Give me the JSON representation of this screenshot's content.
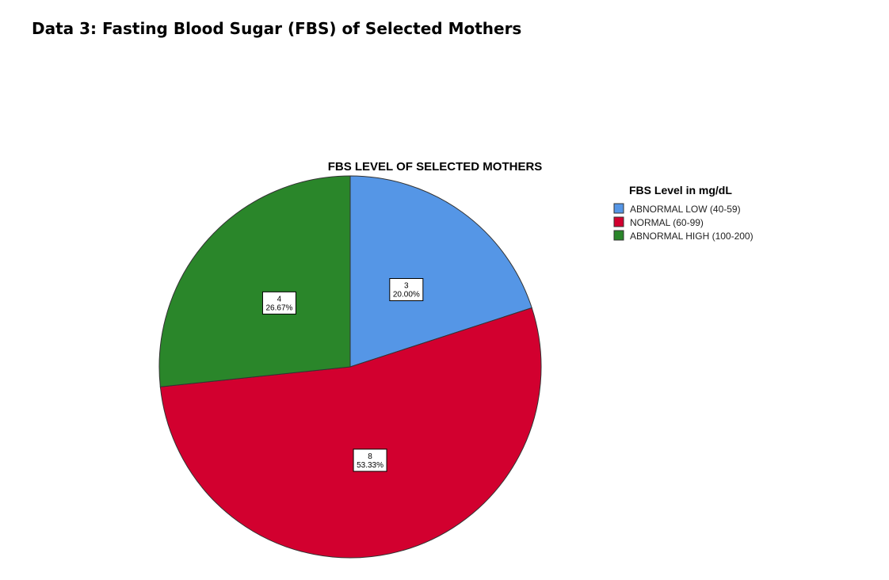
{
  "heading": "Data 3: Fasting Blood Sugar (FBS) of Selected Mothers",
  "chart_data": {
    "type": "pie",
    "title": "FBS LEVEL OF SELECTED MOTHERS",
    "legend_title": "FBS Level in mg/dL",
    "legend_position": "right",
    "slices": [
      {
        "label": "ABNORMAL LOW (40-59)",
        "value": 3,
        "percent": "20.00%",
        "color": "#5596e6"
      },
      {
        "label": "NORMAL (60-99)",
        "value": 8,
        "percent": "53.33%",
        "color": "#d2002f"
      },
      {
        "label": "ABNORMAL HIGH (100-200)",
        "value": 4,
        "percent": "26.67%",
        "color": "#2a862a"
      }
    ]
  }
}
